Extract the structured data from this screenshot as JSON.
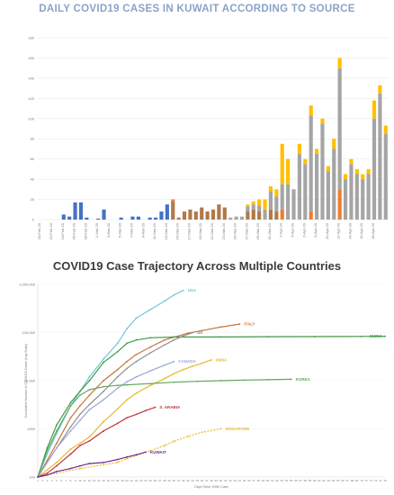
{
  "titles": {
    "chart1": "DAILY COVID19 CASES IN KUWAIT ACCORDING TO SOURCE",
    "chart2": "COVID19 Case Trajectory Across Multiple Countries"
  },
  "colors": {
    "title1": "#8aa3c8",
    "blue": "#4472c4",
    "brown": "#b0794a",
    "orange": "#ed7d31",
    "gray": "#a5a5a5",
    "gold": "#ffc000",
    "USA": "#70c7d6",
    "ITALY": "#c8753a",
    "CHINA": "#3f9a48",
    "INDIA": "#e8b82e",
    "UK": "#8f8f8f",
    "CANADA": "#9aa6d8",
    "KOREA": "#62a75c",
    "S. ARABIA": "#c0343b",
    "SINGAPORE": "#f0b82a",
    "KUWAIT": "#6b2c8e"
  },
  "chart_data": [
    {
      "type": "bar",
      "stacked": true,
      "title": "DAILY COVID19 CASES IN KUWAIT ACCORDING TO SOURCE",
      "xlabel": "",
      "ylabel": "",
      "ylim": [
        0,
        180
      ],
      "yticks": [
        0,
        20,
        40,
        60,
        80,
        100,
        120,
        140,
        160,
        180
      ],
      "grid": true,
      "x_tick_labels": [
        "20-Feb-20",
        "22-Feb-20",
        "24-Feb-20",
        "26-Feb-20",
        "28-Feb-20",
        "1-Mar-20",
        "3-Mar-20",
        "5-Mar-20",
        "7-Mar-20",
        "9-Mar-20",
        "11-Mar-20",
        "13-Mar-20",
        "15-Mar-20",
        "17-Mar-20",
        "19-Mar-20",
        "21-Mar-20",
        "23-Mar-20",
        "25-Mar-20",
        "27-Mar-20",
        "29-Mar-20",
        "31-Mar-20",
        "2-Apr-20",
        "4-Apr-20",
        "6-Apr-20",
        "8-Apr-20",
        "10-Apr-20",
        "12-Apr-20",
        "14-Apr-20",
        "16-Apr-20",
        "18-Apr-20"
      ],
      "categories": [
        "20-Feb-20",
        "21-Feb-20",
        "22-Feb-20",
        "23-Feb-20",
        "24-Feb-20",
        "25-Feb-20",
        "26-Feb-20",
        "27-Feb-20",
        "28-Feb-20",
        "29-Feb-20",
        "1-Mar-20",
        "2-Mar-20",
        "3-Mar-20",
        "4-Mar-20",
        "5-Mar-20",
        "6-Mar-20",
        "7-Mar-20",
        "8-Mar-20",
        "9-Mar-20",
        "10-Mar-20",
        "11-Mar-20",
        "12-Mar-20",
        "13-Mar-20",
        "14-Mar-20",
        "15-Mar-20",
        "16-Mar-20",
        "17-Mar-20",
        "18-Mar-20",
        "19-Mar-20",
        "20-Mar-20",
        "21-Mar-20",
        "22-Mar-20",
        "23-Mar-20",
        "24-Mar-20",
        "25-Mar-20",
        "26-Mar-20",
        "27-Mar-20",
        "28-Mar-20",
        "29-Mar-20",
        "30-Mar-20",
        "31-Mar-20",
        "1-Apr-20",
        "2-Apr-20",
        "3-Apr-20",
        "4-Apr-20",
        "5-Apr-20",
        "6-Apr-20",
        "7-Apr-20",
        "8-Apr-20",
        "9-Apr-20",
        "10-Apr-20",
        "11-Apr-20",
        "12-Apr-20",
        "13-Apr-20",
        "14-Apr-20",
        "15-Apr-20",
        "16-Apr-20",
        "17-Apr-20",
        "18-Apr-20",
        "19-Apr-20",
        "20-Apr-20"
      ],
      "series": [
        {
          "color": "blue",
          "values": [
            0,
            0,
            0,
            0,
            5,
            3,
            17,
            17,
            2,
            0,
            1,
            10,
            0,
            0,
            2,
            0,
            3,
            3,
            0,
            2,
            2,
            8,
            15,
            0,
            0,
            0,
            0,
            0,
            0,
            0,
            0,
            0,
            0,
            0,
            0,
            0,
            0,
            0,
            0,
            0,
            0,
            0,
            0,
            0,
            0,
            0,
            0,
            0,
            0,
            0,
            0,
            0,
            0,
            0,
            0,
            0,
            0,
            0,
            0,
            0,
            0
          ]
        },
        {
          "color": "brown",
          "values": [
            0,
            0,
            0,
            0,
            0,
            0,
            0,
            0,
            0,
            0,
            0,
            0,
            0,
            0,
            0,
            0,
            0,
            0,
            0,
            0,
            0,
            0,
            0,
            18,
            2,
            8,
            10,
            8,
            12,
            8,
            10,
            15,
            12,
            0,
            0,
            0,
            8,
            10,
            8,
            0,
            10,
            8,
            0,
            0,
            0,
            0,
            0,
            0,
            0,
            0,
            0,
            0,
            0,
            0,
            0,
            0,
            0,
            0,
            0,
            0,
            0
          ]
        },
        {
          "color": "orange",
          "values": [
            0,
            0,
            0,
            0,
            0,
            0,
            0,
            0,
            0,
            0,
            0,
            0,
            0,
            0,
            0,
            0,
            0,
            0,
            0,
            0,
            0,
            0,
            0,
            2,
            0,
            0,
            0,
            0,
            0,
            0,
            0,
            0,
            0,
            0,
            0,
            0,
            0,
            0,
            0,
            0,
            0,
            0,
            10,
            0,
            0,
            0,
            0,
            8,
            0,
            0,
            0,
            0,
            30,
            0,
            0,
            0,
            0,
            0,
            0,
            0,
            0
          ]
        },
        {
          "color": "gray",
          "values": [
            0,
            0,
            0,
            0,
            0,
            0,
            0,
            0,
            0,
            0,
            0,
            0,
            0,
            0,
            0,
            0,
            0,
            0,
            0,
            0,
            0,
            0,
            0,
            0,
            0,
            0,
            0,
            0,
            0,
            0,
            0,
            0,
            0,
            2,
            3,
            3,
            5,
            5,
            6,
            10,
            18,
            15,
            25,
            35,
            30,
            65,
            55,
            95,
            65,
            95,
            48,
            70,
            120,
            40,
            55,
            45,
            40,
            45,
            100,
            125,
            85
          ]
        },
        {
          "color": "gold",
          "values": [
            0,
            0,
            0,
            0,
            0,
            0,
            0,
            0,
            0,
            0,
            0,
            0,
            0,
            0,
            0,
            0,
            0,
            0,
            0,
            0,
            0,
            0,
            0,
            0,
            0,
            0,
            0,
            0,
            0,
            0,
            0,
            0,
            0,
            0,
            0,
            0,
            2,
            3,
            6,
            10,
            5,
            7,
            40,
            25,
            0,
            10,
            5,
            10,
            5,
            5,
            5,
            10,
            10,
            5,
            5,
            5,
            5,
            5,
            18,
            8,
            8
          ]
        }
      ]
    },
    {
      "type": "line",
      "title": "COVID19 Case Trajectory Across Multiple Countries",
      "xlabel": "Days Since 100th Case",
      "ylabel": "Cumulative Number of COVID19 Cases (Log Scale)",
      "y_scale": "log",
      "ylim": [
        100,
        1000000
      ],
      "yticks": [
        100,
        1000,
        10000,
        100000,
        1000000
      ],
      "ytick_labels": [
        "100",
        "1000",
        "10,000",
        "100,000",
        "1,000,000"
      ],
      "xlim": [
        1,
        75
      ],
      "series": [
        {
          "name": "USA",
          "x": [
            1,
            3,
            5,
            8,
            10,
            12,
            15,
            18,
            20,
            22,
            25,
            28,
            30,
            32
          ],
          "y": [
            100,
            300,
            800,
            3000,
            6000,
            12000,
            28000,
            60000,
            120000,
            200000,
            300000,
            450000,
            600000,
            750000
          ]
        },
        {
          "name": "ITALY",
          "x": [
            1,
            3,
            5,
            8,
            10,
            12,
            15,
            18,
            20,
            22,
            25,
            28,
            30,
            33,
            36,
            40,
            44
          ],
          "y": [
            100,
            220,
            500,
            1700,
            3000,
            5000,
            10000,
            17000,
            25000,
            35000,
            50000,
            70000,
            80000,
            97000,
            110000,
            130000,
            150000
          ]
        },
        {
          "name": "CHINA",
          "x": [
            1,
            3,
            5,
            8,
            10,
            12,
            15,
            18,
            20,
            22,
            25,
            30,
            40,
            50,
            60,
            70,
            75
          ],
          "y": [
            100,
            400,
            1200,
            3500,
            6000,
            10000,
            24000,
            40000,
            60000,
            70000,
            78000,
            80500,
            81000,
            82000,
            82500,
            83000,
            83500
          ]
        },
        {
          "name": "INDIA",
          "x": [
            1,
            3,
            5,
            8,
            10,
            12,
            15,
            18,
            20,
            22,
            25,
            28,
            30,
            32,
            34,
            36,
            38
          ],
          "y": [
            100,
            140,
            200,
            380,
            500,
            680,
            1400,
            2600,
            4000,
            5500,
            8000,
            11000,
            14000,
            17000,
            20000,
            23000,
            27000
          ]
        },
        {
          "name": "UK",
          "x": [
            1,
            3,
            5,
            8,
            10,
            12,
            15,
            18,
            20,
            22,
            25,
            28,
            30,
            32,
            34
          ],
          "y": [
            100,
            200,
            400,
            1100,
            2000,
            3200,
            6000,
            12000,
            18000,
            25000,
            38000,
            55000,
            70000,
            85000,
            100000
          ]
        },
        {
          "name": "CANADA",
          "x": [
            1,
            3,
            5,
            8,
            10,
            12,
            15,
            18,
            20,
            22,
            25,
            28,
            30
          ],
          "y": [
            100,
            200,
            400,
            900,
            1500,
            2500,
            4000,
            7000,
            9500,
            12000,
            16000,
            21000,
            25000
          ]
        },
        {
          "name": "KOREA",
          "x": [
            1,
            3,
            5,
            8,
            10,
            12,
            15,
            18,
            20,
            25,
            30,
            35,
            40,
            45,
            50,
            55
          ],
          "y": [
            100,
            350,
            900,
            3000,
            5000,
            6500,
            7500,
            8000,
            8200,
            8700,
            9300,
            9700,
            10000,
            10300,
            10500,
            10700
          ]
        },
        {
          "name": "S. ARABIA",
          "x": [
            1,
            3,
            5,
            8,
            10,
            12,
            15,
            18,
            20,
            22,
            24,
            26
          ],
          "y": [
            100,
            120,
            170,
            300,
            450,
            560,
            900,
            1300,
            1700,
            2000,
            2400,
            2800
          ]
        },
        {
          "name": "SINGAPORE",
          "x": [
            1,
            5,
            10,
            15,
            18,
            20,
            22,
            25,
            28,
            30,
            33,
            36,
            40
          ],
          "y": [
            100,
            120,
            150,
            180,
            200,
            240,
            280,
            350,
            450,
            550,
            700,
            850,
            1000
          ]
        },
        {
          "name": "KUWAIT",
          "x": [
            1,
            3,
            5,
            8,
            10,
            12,
            15,
            18,
            20,
            22,
            24
          ],
          "y": [
            100,
            110,
            130,
            150,
            170,
            190,
            200,
            230,
            260,
            290,
            330
          ]
        }
      ]
    }
  ]
}
